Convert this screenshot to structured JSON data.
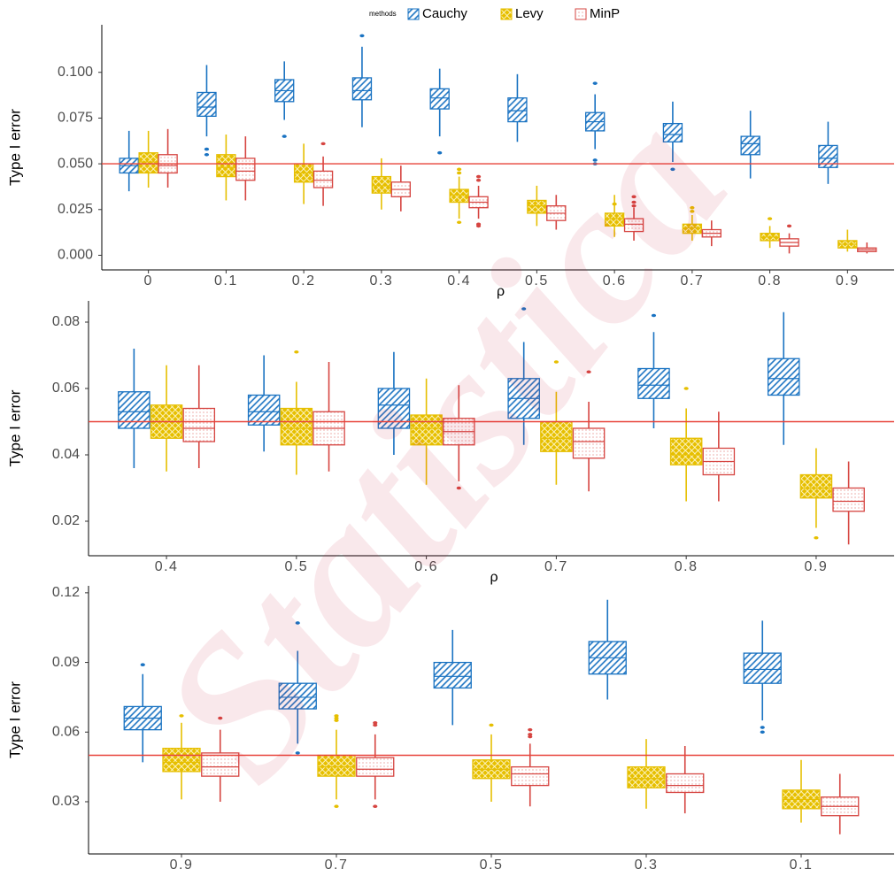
{
  "watermark": "Statistica",
  "chart_data": [
    {
      "type": "box",
      "x_label": "ρ",
      "y_label": "Type I error",
      "legend_title": "methods",
      "grid": false,
      "hline": 0.05,
      "hline_color": "#e8433a",
      "categories": [
        "0",
        "0.1",
        "0.2",
        "0.3",
        "0.4",
        "0.5",
        "0.6",
        "0.7",
        "0.8",
        "0.9"
      ],
      "ylim": [
        -0.008,
        0.126
      ],
      "yticks": [
        {
          "value": 0,
          "label": "0.000"
        },
        0.025,
        {
          "value": 0.05,
          "label": "0.050"
        },
        0.075,
        {
          "value": 0.1,
          "label": "0.100"
        }
      ],
      "series": [
        {
          "name": "Cauchy",
          "color": "#1a73c2",
          "fill_pattern": "stripes",
          "values": [
            {
              "low": 0.035,
              "q1": 0.045,
              "median": 0.049,
              "q3": 0.053,
              "high": 0.068
            },
            {
              "low": 0.065,
              "q1": 0.076,
              "median": 0.081,
              "q3": 0.089,
              "high": 0.104,
              "outliers": [
                0.058,
                0.055
              ]
            },
            {
              "low": 0.074,
              "q1": 0.084,
              "median": 0.09,
              "q3": 0.096,
              "high": 0.106,
              "outliers": [
                0.065
              ]
            },
            {
              "low": 0.07,
              "q1": 0.085,
              "median": 0.09,
              "q3": 0.097,
              "high": 0.114,
              "outliers": [
                0.12
              ]
            },
            {
              "low": 0.065,
              "q1": 0.08,
              "median": 0.086,
              "q3": 0.091,
              "high": 0.102,
              "outliers": [
                0.056
              ]
            },
            {
              "low": 0.062,
              "q1": 0.073,
              "median": 0.079,
              "q3": 0.086,
              "high": 0.099
            },
            {
              "low": 0.058,
              "q1": 0.068,
              "median": 0.073,
              "q3": 0.078,
              "high": 0.088,
              "outliers": [
                0.094,
                0.052,
                0.05
              ]
            },
            {
              "low": 0.051,
              "q1": 0.062,
              "median": 0.066,
              "q3": 0.072,
              "high": 0.084,
              "outliers": [
                0.047
              ]
            },
            {
              "low": 0.042,
              "q1": 0.055,
              "median": 0.061,
              "q3": 0.065,
              "high": 0.079
            },
            {
              "low": 0.039,
              "q1": 0.048,
              "median": 0.053,
              "q3": 0.06,
              "high": 0.073
            }
          ]
        },
        {
          "name": "Levy",
          "color": "#e6bf00",
          "fill_pattern": "crosshatch",
          "values": [
            {
              "low": 0.037,
              "q1": 0.045,
              "median": 0.051,
              "q3": 0.056,
              "high": 0.068
            },
            {
              "low": 0.03,
              "q1": 0.043,
              "median": 0.048,
              "q3": 0.055,
              "high": 0.066
            },
            {
              "low": 0.028,
              "q1": 0.04,
              "median": 0.045,
              "q3": 0.05,
              "high": 0.061
            },
            {
              "low": 0.025,
              "q1": 0.034,
              "median": 0.038,
              "q3": 0.043,
              "high": 0.053
            },
            {
              "low": 0.02,
              "q1": 0.029,
              "median": 0.033,
              "q3": 0.036,
              "high": 0.043,
              "outliers": [
                0.047,
                0.045,
                0.018
              ]
            },
            {
              "low": 0.016,
              "q1": 0.023,
              "median": 0.027,
              "q3": 0.03,
              "high": 0.038
            },
            {
              "low": 0.01,
              "q1": 0.016,
              "median": 0.02,
              "q3": 0.023,
              "high": 0.033,
              "outliers": [
                0.028
              ]
            },
            {
              "low": 0.008,
              "q1": 0.012,
              "median": 0.015,
              "q3": 0.017,
              "high": 0.022,
              "outliers": [
                0.026,
                0.024
              ]
            },
            {
              "low": 0.004,
              "q1": 0.008,
              "median": 0.01,
              "q3": 0.012,
              "high": 0.016,
              "outliers": [
                0.02
              ]
            },
            {
              "low": 0.002,
              "q1": 0.004,
              "median": 0.006,
              "q3": 0.008,
              "high": 0.014
            }
          ]
        },
        {
          "name": "MinP",
          "color": "#d64541",
          "fill_pattern": "dots",
          "values": [
            {
              "low": 0.037,
              "q1": 0.045,
              "median": 0.049,
              "q3": 0.055,
              "high": 0.069
            },
            {
              "low": 0.03,
              "q1": 0.041,
              "median": 0.046,
              "q3": 0.053,
              "high": 0.065
            },
            {
              "low": 0.027,
              "q1": 0.037,
              "median": 0.041,
              "q3": 0.046,
              "high": 0.054,
              "outliers": [
                0.061
              ]
            },
            {
              "low": 0.024,
              "q1": 0.032,
              "median": 0.036,
              "q3": 0.04,
              "high": 0.049
            },
            {
              "low": 0.02,
              "q1": 0.026,
              "median": 0.029,
              "q3": 0.032,
              "high": 0.038,
              "outliers": [
                0.043,
                0.041,
                0.017,
                0.016
              ]
            },
            {
              "low": 0.014,
              "q1": 0.019,
              "median": 0.023,
              "q3": 0.027,
              "high": 0.033
            },
            {
              "low": 0.008,
              "q1": 0.013,
              "median": 0.017,
              "q3": 0.02,
              "high": 0.026,
              "outliers": [
                0.032,
                0.029,
                0.027
              ]
            },
            {
              "low": 0.005,
              "q1": 0.01,
              "median": 0.012,
              "q3": 0.014,
              "high": 0.019
            },
            {
              "low": 0.001,
              "q1": 0.005,
              "median": 0.007,
              "q3": 0.009,
              "high": 0.012,
              "outliers": [
                0.016
              ]
            },
            {
              "low": 0.001,
              "q1": 0.002,
              "median": 0.003,
              "q3": 0.004,
              "high": 0.007
            }
          ]
        }
      ]
    },
    {
      "type": "box",
      "x_label": "ρ",
      "y_label": "Type I error",
      "grid": false,
      "hline": 0.05,
      "hline_color": "#e8433a",
      "categories": [
        "0.4",
        "0.5",
        "0.6",
        "0.7",
        "0.8",
        "0.9"
      ],
      "ylim": [
        0.0096,
        0.0864
      ],
      "yticks": [
        0.02,
        0.04,
        0.06,
        0.08
      ],
      "series": [
        {
          "color": "#1a73c2",
          "fill_pattern": "stripes",
          "values": [
            {
              "low": 0.036,
              "q1": 0.048,
              "median": 0.053,
              "q3": 0.059,
              "high": 0.072
            },
            {
              "low": 0.041,
              "q1": 0.049,
              "median": 0.053,
              "q3": 0.058,
              "high": 0.07
            },
            {
              "low": 0.04,
              "q1": 0.048,
              "median": 0.055,
              "q3": 0.06,
              "high": 0.071
            },
            {
              "low": 0.043,
              "q1": 0.051,
              "median": 0.057,
              "q3": 0.063,
              "high": 0.074,
              "outliers": [
                0.084
              ]
            },
            {
              "low": 0.048,
              "q1": 0.057,
              "median": 0.061,
              "q3": 0.066,
              "high": 0.077,
              "outliers": [
                0.082
              ]
            },
            {
              "low": 0.043,
              "q1": 0.058,
              "median": 0.063,
              "q3": 0.069,
              "high": 0.083
            }
          ]
        },
        {
          "color": "#e6bf00",
          "fill_pattern": "crosshatch",
          "values": [
            {
              "low": 0.035,
              "q1": 0.045,
              "median": 0.05,
              "q3": 0.055,
              "high": 0.067
            },
            {
              "low": 0.034,
              "q1": 0.043,
              "median": 0.048,
              "q3": 0.054,
              "high": 0.062,
              "outliers": [
                0.071
              ]
            },
            {
              "low": 0.031,
              "q1": 0.043,
              "median": 0.048,
              "q3": 0.052,
              "high": 0.063
            },
            {
              "low": 0.031,
              "q1": 0.041,
              "median": 0.045,
              "q3": 0.05,
              "high": 0.059,
              "outliers": [
                0.068
              ]
            },
            {
              "low": 0.026,
              "q1": 0.037,
              "median": 0.04,
              "q3": 0.045,
              "high": 0.054,
              "outliers": [
                0.06
              ]
            },
            {
              "low": 0.018,
              "q1": 0.027,
              "median": 0.03,
              "q3": 0.034,
              "high": 0.042,
              "outliers": [
                0.015
              ]
            }
          ]
        },
        {
          "color": "#d64541",
          "fill_pattern": "dots",
          "values": [
            {
              "low": 0.036,
              "q1": 0.044,
              "median": 0.048,
              "q3": 0.054,
              "high": 0.067
            },
            {
              "low": 0.035,
              "q1": 0.043,
              "median": 0.048,
              "q3": 0.053,
              "high": 0.068
            },
            {
              "low": 0.032,
              "q1": 0.043,
              "median": 0.047,
              "q3": 0.051,
              "high": 0.061,
              "outliers": [
                0.03
              ]
            },
            {
              "low": 0.029,
              "q1": 0.039,
              "median": 0.044,
              "q3": 0.048,
              "high": 0.056,
              "outliers": [
                0.065
              ]
            },
            {
              "low": 0.026,
              "q1": 0.034,
              "median": 0.038,
              "q3": 0.042,
              "high": 0.053
            },
            {
              "low": 0.013,
              "q1": 0.023,
              "median": 0.026,
              "q3": 0.03,
              "high": 0.038
            }
          ]
        }
      ]
    },
    {
      "type": "box",
      "x_label": "ρ",
      "y_label": "Type I error",
      "grid": false,
      "hline": 0.05,
      "hline_color": "#e8433a",
      "categories": [
        "0.9",
        "0.7",
        "0.5",
        "0.3",
        "0.1"
      ],
      "ylim": [
        0.0075,
        0.123
      ],
      "yticks": [
        0.03,
        0.06,
        0.09,
        0.12
      ],
      "series": [
        {
          "color": "#1a73c2",
          "fill_pattern": "stripes",
          "values": [
            {
              "low": 0.047,
              "q1": 0.061,
              "median": 0.066,
              "q3": 0.071,
              "high": 0.085,
              "outliers": [
                0.089
              ]
            },
            {
              "low": 0.055,
              "q1": 0.07,
              "median": 0.075,
              "q3": 0.081,
              "high": 0.095,
              "outliers": [
                0.107,
                0.051
              ]
            },
            {
              "low": 0.063,
              "q1": 0.079,
              "median": 0.084,
              "q3": 0.09,
              "high": 0.104
            },
            {
              "low": 0.074,
              "q1": 0.085,
              "median": 0.092,
              "q3": 0.099,
              "high": 0.117
            },
            {
              "low": 0.065,
              "q1": 0.081,
              "median": 0.087,
              "q3": 0.094,
              "high": 0.108,
              "outliers": [
                0.062,
                0.06
              ]
            }
          ]
        },
        {
          "color": "#e6bf00",
          "fill_pattern": "crosshatch",
          "values": [
            {
              "low": 0.031,
              "q1": 0.043,
              "median": 0.047,
              "q3": 0.053,
              "high": 0.064,
              "outliers": [
                0.067
              ]
            },
            {
              "low": 0.031,
              "q1": 0.041,
              "median": 0.045,
              "q3": 0.05,
              "high": 0.061,
              "outliers": [
                0.067,
                0.066,
                0.065,
                0.028
              ]
            },
            {
              "low": 0.03,
              "q1": 0.04,
              "median": 0.044,
              "q3": 0.048,
              "high": 0.059,
              "outliers": [
                0.063
              ]
            },
            {
              "low": 0.027,
              "q1": 0.036,
              "median": 0.04,
              "q3": 0.045,
              "high": 0.057
            },
            {
              "low": 0.021,
              "q1": 0.027,
              "median": 0.031,
              "q3": 0.035,
              "high": 0.048
            }
          ]
        },
        {
          "color": "#d64541",
          "fill_pattern": "dots",
          "values": [
            {
              "low": 0.03,
              "q1": 0.041,
              "median": 0.045,
              "q3": 0.051,
              "high": 0.061,
              "outliers": [
                0.066
              ]
            },
            {
              "low": 0.031,
              "q1": 0.041,
              "median": 0.044,
              "q3": 0.049,
              "high": 0.059,
              "outliers": [
                0.064,
                0.063,
                0.028
              ]
            },
            {
              "low": 0.028,
              "q1": 0.037,
              "median": 0.042,
              "q3": 0.045,
              "high": 0.055,
              "outliers": [
                0.061,
                0.059,
                0.058
              ]
            },
            {
              "low": 0.025,
              "q1": 0.034,
              "median": 0.037,
              "q3": 0.042,
              "high": 0.054
            },
            {
              "low": 0.016,
              "q1": 0.024,
              "median": 0.028,
              "q3": 0.032,
              "high": 0.042
            }
          ]
        }
      ]
    }
  ]
}
